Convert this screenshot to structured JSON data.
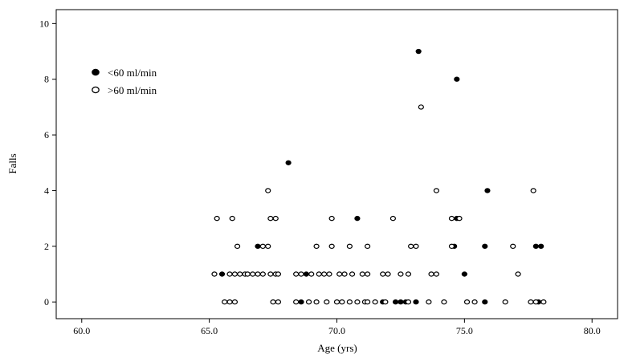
{
  "chart_data": {
    "type": "scatter",
    "title": "",
    "xlabel": "Age (yrs)",
    "ylabel": "Falls",
    "xlim": [
      59,
      81
    ],
    "ylim": [
      -0.6,
      10.5
    ],
    "x_ticks": [
      60.0,
      65.0,
      70.0,
      75.0,
      80.0
    ],
    "x_tick_labels": [
      "60.0",
      "65.0",
      "70.0",
      "75.0",
      "80.0"
    ],
    "y_ticks": [
      0,
      2,
      4,
      6,
      8,
      10
    ],
    "y_tick_labels": [
      "0",
      "2",
      "4",
      "6",
      "8",
      "10"
    ],
    "grid": false,
    "legend_position": "top-left",
    "series": [
      {
        "name": "<60 ml/min",
        "marker": "filled-circle",
        "color": "#000000",
        "points": [
          [
            73.2,
            9
          ],
          [
            74.7,
            8
          ],
          [
            68.1,
            5
          ],
          [
            75.9,
            4
          ],
          [
            70.8,
            3
          ],
          [
            74.7,
            3
          ],
          [
            66.9,
            2
          ],
          [
            74.6,
            2
          ],
          [
            75.8,
            2
          ],
          [
            77.8,
            2
          ],
          [
            78.0,
            2
          ],
          [
            65.5,
            1
          ],
          [
            68.8,
            1
          ],
          [
            75.0,
            1
          ],
          [
            68.6,
            0
          ],
          [
            71.8,
            0
          ],
          [
            72.3,
            0
          ],
          [
            72.5,
            0
          ],
          [
            72.7,
            0
          ],
          [
            73.1,
            0
          ],
          [
            75.8,
            0
          ],
          [
            77.9,
            0
          ]
        ]
      },
      {
        "name": ">60 ml/min",
        "marker": "open-circle",
        "color": "#000000",
        "points": [
          [
            73.3,
            7
          ],
          [
            67.3,
            4
          ],
          [
            73.9,
            4
          ],
          [
            77.7,
            4
          ],
          [
            65.3,
            3
          ],
          [
            65.9,
            3
          ],
          [
            67.4,
            3
          ],
          [
            67.6,
            3
          ],
          [
            69.8,
            3
          ],
          [
            72.2,
            3
          ],
          [
            74.5,
            3
          ],
          [
            74.8,
            3
          ],
          [
            66.1,
            2
          ],
          [
            67.1,
            2
          ],
          [
            67.3,
            2
          ],
          [
            69.2,
            2
          ],
          [
            69.8,
            2
          ],
          [
            70.5,
            2
          ],
          [
            71.2,
            2
          ],
          [
            72.9,
            2
          ],
          [
            73.1,
            2
          ],
          [
            74.5,
            2
          ],
          [
            76.9,
            2
          ],
          [
            65.2,
            1
          ],
          [
            65.8,
            1
          ],
          [
            66.0,
            1
          ],
          [
            66.2,
            1
          ],
          [
            66.4,
            1
          ],
          [
            66.5,
            1
          ],
          [
            66.7,
            1
          ],
          [
            66.9,
            1
          ],
          [
            67.1,
            1
          ],
          [
            67.4,
            1
          ],
          [
            67.6,
            1
          ],
          [
            67.7,
            1
          ],
          [
            68.4,
            1
          ],
          [
            68.6,
            1
          ],
          [
            69.0,
            1
          ],
          [
            69.3,
            1
          ],
          [
            69.5,
            1
          ],
          [
            69.7,
            1
          ],
          [
            70.1,
            1
          ],
          [
            70.3,
            1
          ],
          [
            70.6,
            1
          ],
          [
            71.0,
            1
          ],
          [
            71.2,
            1
          ],
          [
            71.8,
            1
          ],
          [
            72.0,
            1
          ],
          [
            72.5,
            1
          ],
          [
            72.8,
            1
          ],
          [
            73.7,
            1
          ],
          [
            73.9,
            1
          ],
          [
            77.1,
            1
          ],
          [
            65.6,
            0
          ],
          [
            65.8,
            0
          ],
          [
            66.0,
            0
          ],
          [
            67.5,
            0
          ],
          [
            67.7,
            0
          ],
          [
            68.4,
            0
          ],
          [
            68.9,
            0
          ],
          [
            69.2,
            0
          ],
          [
            69.6,
            0
          ],
          [
            70.0,
            0
          ],
          [
            70.2,
            0
          ],
          [
            70.5,
            0
          ],
          [
            70.8,
            0
          ],
          [
            71.1,
            0
          ],
          [
            71.2,
            0
          ],
          [
            71.5,
            0
          ],
          [
            71.9,
            0
          ],
          [
            72.8,
            0
          ],
          [
            73.6,
            0
          ],
          [
            74.2,
            0
          ],
          [
            75.1,
            0
          ],
          [
            75.4,
            0
          ],
          [
            76.6,
            0
          ],
          [
            77.6,
            0
          ],
          [
            77.8,
            0
          ],
          [
            78.1,
            0
          ]
        ]
      }
    ]
  }
}
